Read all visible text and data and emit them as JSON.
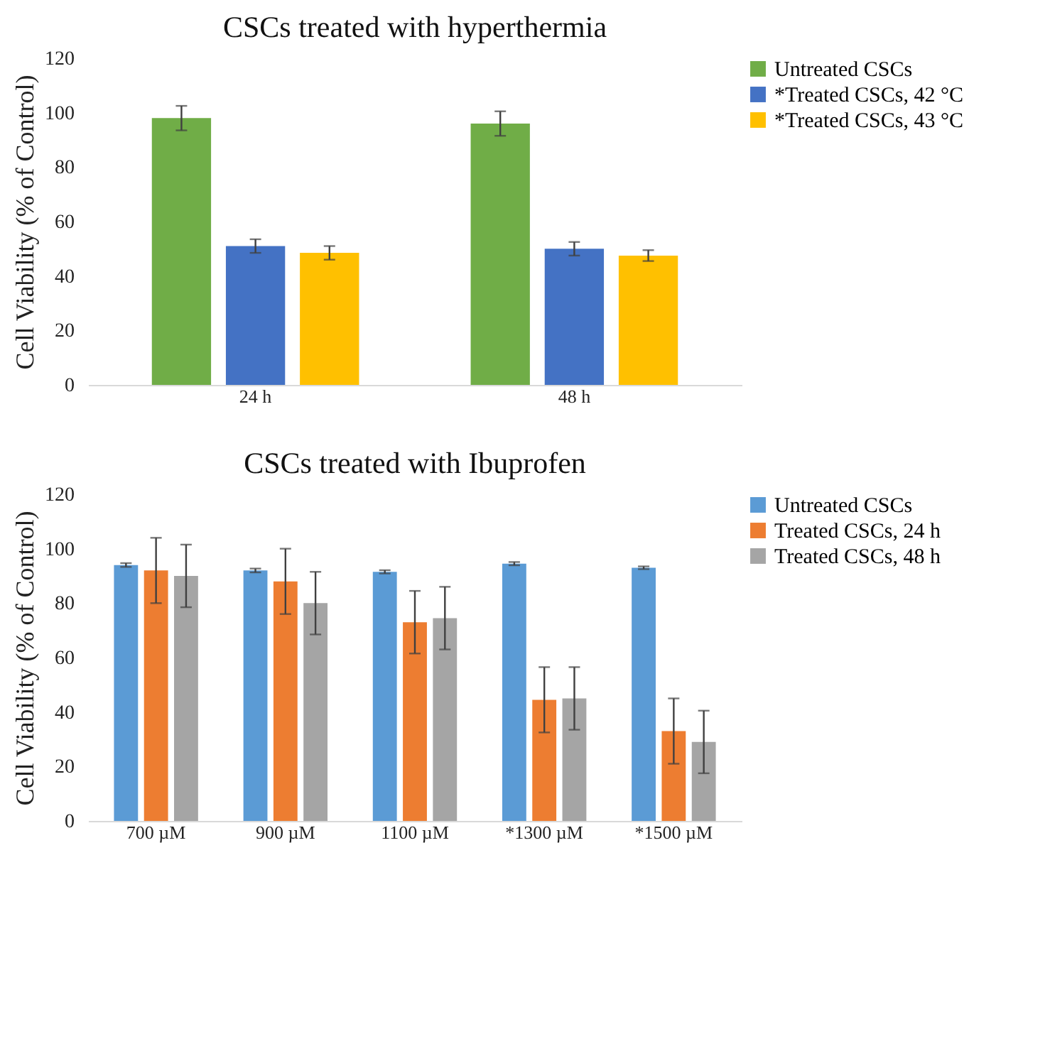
{
  "chart_data": [
    {
      "type": "bar",
      "title": "CSCs treated with hyperthermia",
      "ylabel": "Cell Viability (% of Control)",
      "categories": [
        "24 h",
        "48 h"
      ],
      "series": [
        {
          "name": "Untreated CSCs",
          "color": "#70ad47",
          "values": [
            98,
            96
          ],
          "errors": [
            4.5,
            4.5
          ]
        },
        {
          "name": "*Treated CSCs, 42 °C",
          "color": "#4472c4",
          "values": [
            51,
            50
          ],
          "errors": [
            2.5,
            2.5
          ]
        },
        {
          "name": "*Treated CSCs, 43 °C",
          "color": "#ffc000",
          "values": [
            48.5,
            47.5
          ],
          "errors": [
            2.5,
            2
          ]
        }
      ],
      "ylim": [
        0,
        120
      ],
      "yticks": [
        0,
        20,
        40,
        60,
        80,
        100,
        120
      ],
      "grid": false,
      "legend": "right"
    },
    {
      "type": "bar",
      "title": "CSCs treated with Ibuprofen",
      "ylabel": "Cell Viability (% of Control)",
      "categories": [
        "700 µM",
        "900 µM",
        "1100 µM",
        "*1300 µM",
        "*1500 µM"
      ],
      "series": [
        {
          "name": "Untreated CSCs",
          "color": "#5b9bd5",
          "values": [
            94,
            92,
            91.5,
            94.5,
            93
          ],
          "errors": [
            0.7,
            0.7,
            0.6,
            0.6,
            0.5
          ]
        },
        {
          "name": "Treated CSCs, 24 h",
          "color": "#ed7d31",
          "values": [
            92,
            88,
            73,
            44.5,
            33
          ],
          "errors": [
            12,
            12,
            11.5,
            12,
            12
          ]
        },
        {
          "name": "Treated CSCs, 48 h",
          "color": "#a5a5a5",
          "values": [
            90,
            80,
            74.5,
            45,
            29
          ],
          "errors": [
            11.5,
            11.5,
            11.5,
            11.5,
            11.5
          ]
        }
      ],
      "ylim": [
        0,
        120
      ],
      "yticks": [
        0,
        20,
        40,
        60,
        80,
        100,
        120
      ],
      "grid": false,
      "legend": "right"
    }
  ]
}
